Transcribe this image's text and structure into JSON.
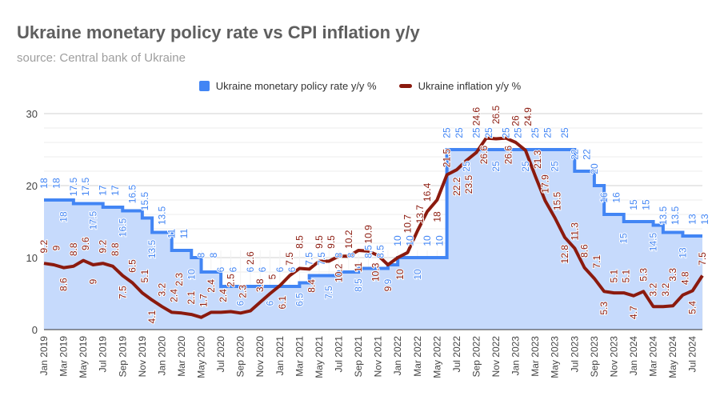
{
  "chart_data": {
    "type": "line",
    "title": "Ukraine monetary policy rate vs CPI inflation y/y",
    "subtitle": "source: Central bank of Ukraine",
    "legend_position": "top",
    "grid": true,
    "ylim": [
      0,
      30
    ],
    "y_ticks": [
      "0",
      "10",
      "20",
      "30"
    ],
    "x": [
      "Jan 2019",
      "Feb 2019",
      "Mar 2019",
      "Apr 2019",
      "May 2019",
      "Jun 2019",
      "Jul 2019",
      "Aug 2019",
      "Sep 2019",
      "Oct 2019",
      "Nov 2019",
      "Dec 2019",
      "Jan 2020",
      "Feb 2020",
      "Mar 2020",
      "Apr 2020",
      "May 2020",
      "Jun 2020",
      "Jul 2020",
      "Aug 2020",
      "Sep 2020",
      "Oct 2020",
      "Nov 2020",
      "Dec 2020",
      "Jan 2021",
      "Feb 2021",
      "Mar 2021",
      "Apr 2021",
      "May 2021",
      "Jun 2021",
      "Jul 2021",
      "Aug 2021",
      "Sep 2021",
      "Oct 2021",
      "Nov 2021",
      "Dec 2021",
      "Jan 2022",
      "Feb 2022",
      "Mar 2022",
      "Apr 2022",
      "May 2022",
      "Jun 2022",
      "Jul 2022",
      "Aug 2022",
      "Sep 2022",
      "Oct 2022",
      "Nov 2022",
      "Dec 2022",
      "Jan 2023",
      "Feb 2023",
      "Mar 2023",
      "Apr 2023",
      "May 2023",
      "Jun 2023",
      "Jul 2023",
      "Aug 2023",
      "Sep 2023",
      "Oct 2023",
      "Nov 2023",
      "Dec 2023",
      "Jan 2024",
      "Feb 2024",
      "Mar 2024",
      "Apr 2024",
      "May 2024",
      "Jun 2024",
      "Jul 2024",
      "Aug 2024"
    ],
    "series": [
      {
        "name": "Ukraine monetary policy rate y/y %",
        "type": "stepped-area",
        "color": "#4285f4",
        "fill": "#c6dafc",
        "values": [
          18,
          18,
          18,
          17.5,
          17.5,
          17.5,
          17,
          17,
          16.5,
          16.5,
          15.5,
          13.5,
          13.5,
          11,
          11,
          10,
          8,
          8,
          6,
          6,
          6,
          6,
          6,
          6,
          6,
          6,
          6.5,
          7.5,
          7.5,
          7.5,
          8,
          8,
          8.5,
          8.5,
          8.5,
          9,
          10,
          10,
          10,
          10,
          10,
          25,
          25,
          25,
          25,
          25,
          25,
          25,
          25,
          25,
          25,
          25,
          25,
          25,
          22,
          22,
          20,
          16,
          16,
          15,
          15,
          15,
          14.5,
          13.5,
          13.5,
          13,
          13,
          13
        ]
      },
      {
        "name": "Ukraine inflation y/y %",
        "type": "line",
        "color": "#8b1a0e",
        "values": [
          9.2,
          9.0,
          8.6,
          8.8,
          9.6,
          9.0,
          9.2,
          8.8,
          7.5,
          6.5,
          5.1,
          4.1,
          3.2,
          2.4,
          2.3,
          2.1,
          1.7,
          2.4,
          2.4,
          2.5,
          2.3,
          2.6,
          3.8,
          5.0,
          6.1,
          7.5,
          8.5,
          8.4,
          9.5,
          9.5,
          10.2,
          10.2,
          11.0,
          10.9,
          10.3,
          9.0,
          10.0,
          10.7,
          13.7,
          16.4,
          18.0,
          21.5,
          22.2,
          23.5,
          24.6,
          26.6,
          26.5,
          26.6,
          26.0,
          24.9,
          21.3,
          17.9,
          15.5,
          12.8,
          11.3,
          8.6,
          7.1,
          5.3,
          5.1,
          5.1,
          4.7,
          5.3,
          3.2,
          3.2,
          3.3,
          4.8,
          5.4,
          7.5
        ]
      }
    ]
  }
}
